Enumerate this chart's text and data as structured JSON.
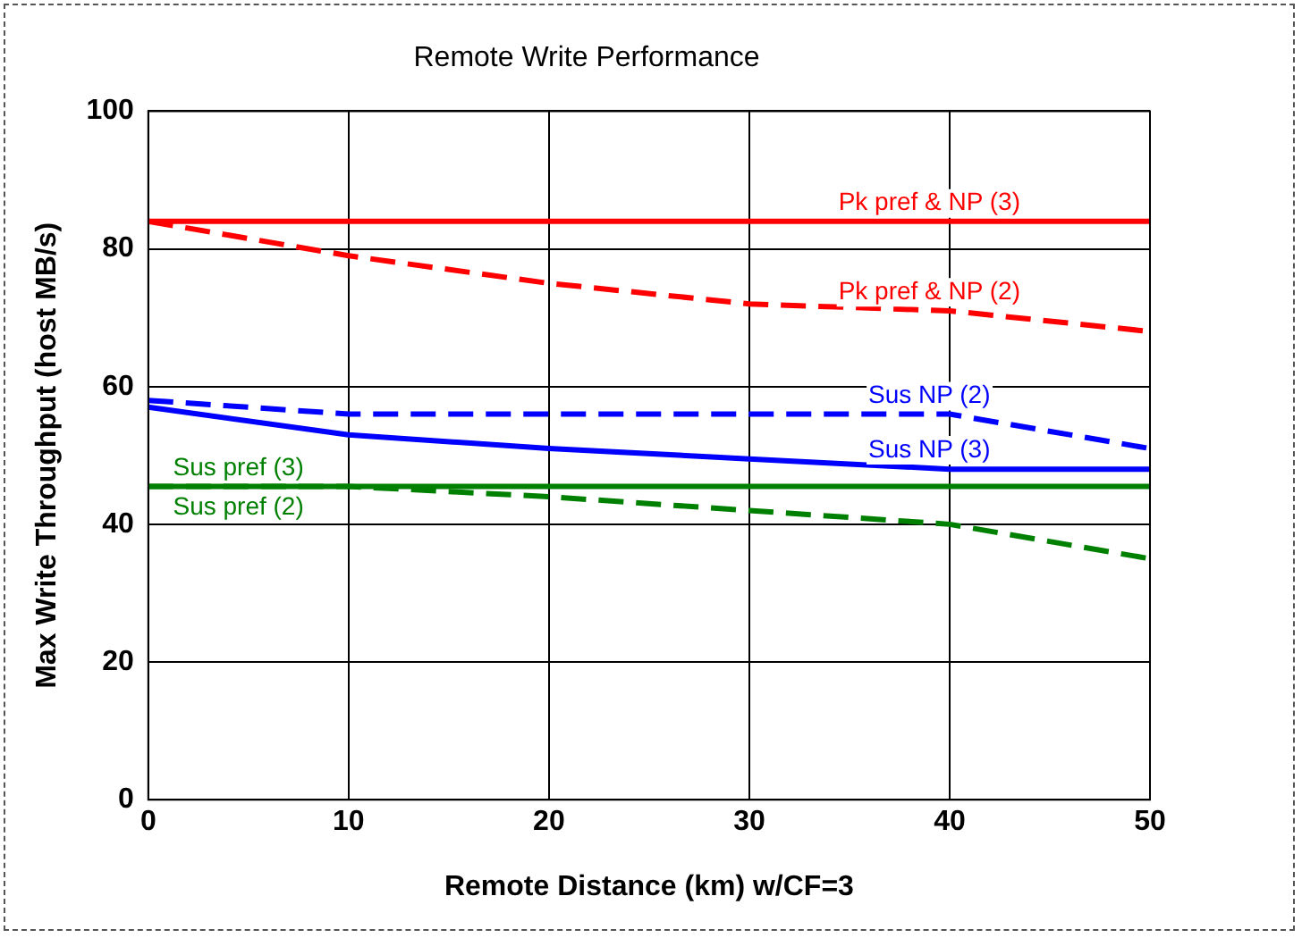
{
  "chart_data": {
    "type": "line",
    "title": "Remote Write Performance",
    "xlabel": "Remote Distance (km) w/CF=3",
    "ylabel": "Max Write Throughput (host MB/s)",
    "x": [
      0,
      10,
      20,
      30,
      40,
      50
    ],
    "xlim": [
      0,
      50
    ],
    "xticks": [
      0,
      10,
      20,
      30,
      40,
      50
    ],
    "ylim": [
      0,
      100
    ],
    "yticks": [
      0,
      20,
      40,
      60,
      80,
      100
    ],
    "grid": true,
    "legend": false,
    "marker": "none",
    "series": [
      {
        "name": "Pk pref & NP (3)",
        "color": "#ff0000",
        "line_style": "solid",
        "values": [
          84,
          84,
          84,
          84,
          84,
          84
        ]
      },
      {
        "name": "Pk pref & NP (2)",
        "color": "#ff0000",
        "line_style": "dashed",
        "values": [
          84,
          79,
          75,
          72,
          71,
          68
        ]
      },
      {
        "name": "Sus NP (2)",
        "color": "#0000ff",
        "line_style": "dashed",
        "values": [
          58,
          56,
          56,
          56,
          56,
          51
        ]
      },
      {
        "name": "Sus NP (3)",
        "color": "#0000ff",
        "line_style": "solid",
        "values": [
          57,
          53,
          51,
          49.5,
          48,
          48
        ]
      },
      {
        "name": "Sus pref (3)",
        "color": "#008000",
        "line_style": "solid",
        "values": [
          45.5,
          45.5,
          45.5,
          45.5,
          45.5,
          45.5
        ]
      },
      {
        "name": "Sus pref (2)",
        "color": "#008000",
        "line_style": "dashed",
        "values": [
          45.5,
          45.5,
          44,
          42,
          40,
          35
        ]
      }
    ]
  }
}
